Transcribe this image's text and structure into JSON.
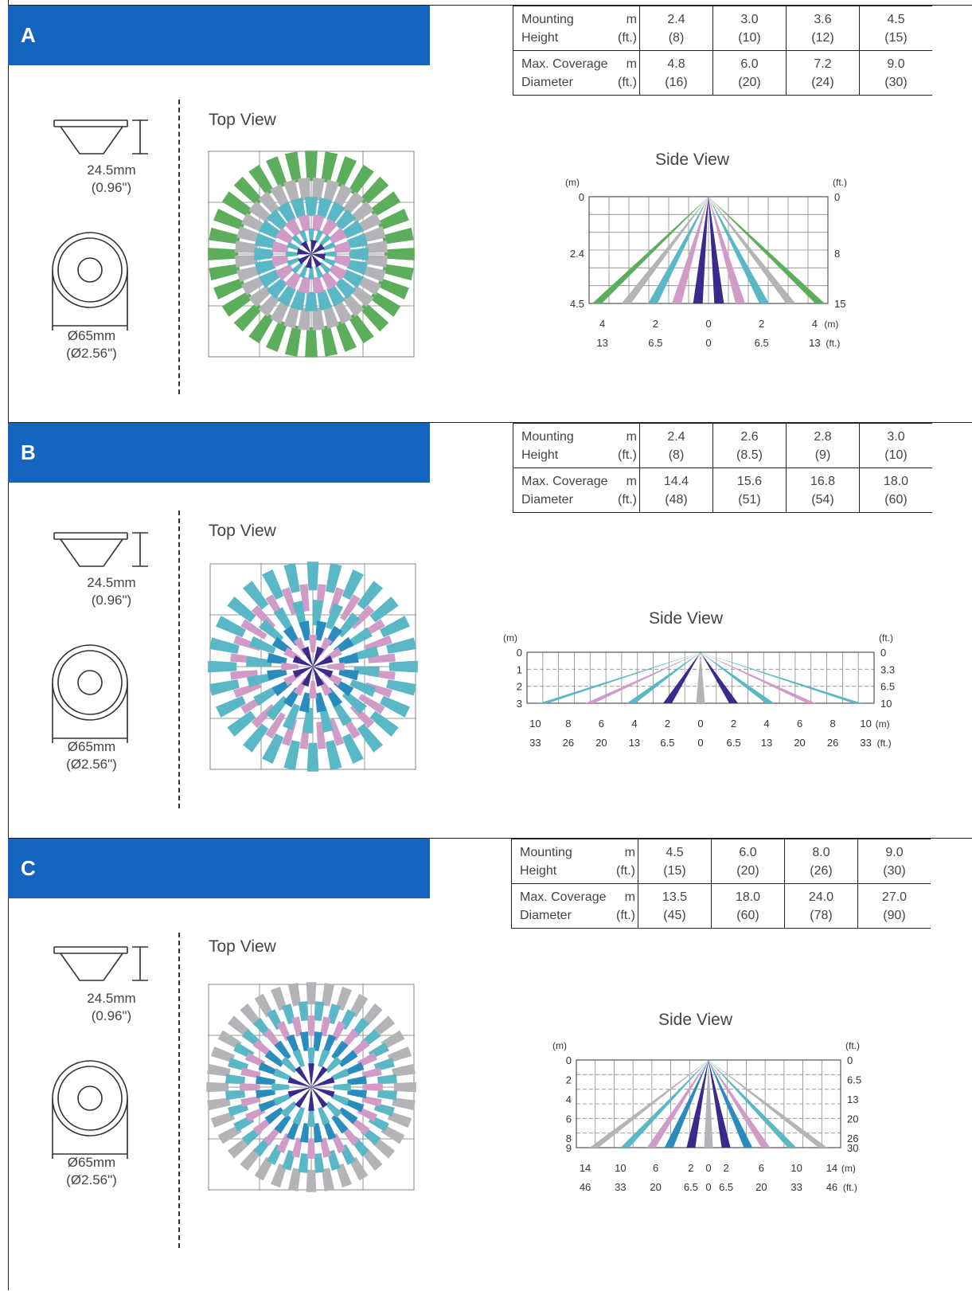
{
  "sections": [
    {
      "letter": "A",
      "table": {
        "row1": {
          "label1": "Mounting",
          "label2": "Height",
          "unit1": "m",
          "unit2": "(ft.)",
          "values": [
            [
              "2.4",
              "(8)"
            ],
            [
              "3.0",
              "(10)"
            ],
            [
              "3.6",
              "(12)"
            ],
            [
              "4.5",
              "(15)"
            ]
          ]
        },
        "row2": {
          "label1": "Max. Coverage",
          "label2": "Diameter",
          "unit1": "m",
          "unit2": "(ft.)",
          "values": [
            [
              "4.8",
              "(16)"
            ],
            [
              "6.0",
              "(20)"
            ],
            [
              "7.2",
              "(24)"
            ],
            [
              "9.0",
              "(30)"
            ]
          ]
        }
      },
      "top_view": "Top View",
      "side_view": "Side View",
      "height_dim": [
        "24.5mm",
        "(0.96\")"
      ],
      "diam_dim": [
        "Ø65mm",
        "(Ø2.56\")"
      ],
      "side": {
        "unit_left": "(m)",
        "unit_right": "(ft.)",
        "y_left": [
          "0",
          "2.4",
          "4.5"
        ],
        "y_right": [
          "0",
          "8",
          "15"
        ],
        "x_m": [
          "4",
          "2",
          "0",
          "2",
          "4"
        ],
        "x_m_unit": "(m)",
        "x_ft": [
          "13",
          "6.5",
          "0",
          "6.5",
          "13"
        ],
        "x_ft_unit": "(ft.)"
      }
    },
    {
      "letter": "B",
      "table": {
        "row1": {
          "label1": "Mounting",
          "label2": "Height",
          "unit1": "m",
          "unit2": "(ft.)",
          "values": [
            [
              "2.4",
              "(8)"
            ],
            [
              "2.6",
              "(8.5)"
            ],
            [
              "2.8",
              "(9)"
            ],
            [
              "3.0",
              "(10)"
            ]
          ]
        },
        "row2": {
          "label1": "Max. Coverage",
          "label2": "Diameter",
          "unit1": "m",
          "unit2": "(ft.)",
          "values": [
            [
              "14.4",
              "(48)"
            ],
            [
              "15.6",
              "(51)"
            ],
            [
              "16.8",
              "(54)"
            ],
            [
              "18.0",
              "(60)"
            ]
          ]
        }
      },
      "top_view": "Top View",
      "side_view": "Side View",
      "height_dim": [
        "24.5mm",
        "(0.96\")"
      ],
      "diam_dim": [
        "Ø65mm",
        "(Ø2.56\")"
      ],
      "side": {
        "unit_left": "(m)",
        "unit_right": "(ft.)",
        "y_left": [
          "0",
          "1",
          "2",
          "3"
        ],
        "y_right": [
          "0",
          "3.3",
          "6.5",
          "10"
        ],
        "x_m": [
          "10",
          "8",
          "6",
          "4",
          "2",
          "0",
          "2",
          "4",
          "6",
          "8",
          "10"
        ],
        "x_m_unit": "(m)",
        "x_ft": [
          "33",
          "26",
          "20",
          "13",
          "6.5",
          "0",
          "6.5",
          "13",
          "20",
          "26",
          "33"
        ],
        "x_ft_unit": "(ft.)"
      }
    },
    {
      "letter": "C",
      "table": {
        "row1": {
          "label1": "Mounting",
          "label2": "Height",
          "unit1": "m",
          "unit2": "(ft.)",
          "values": [
            [
              "4.5",
              "(15)"
            ],
            [
              "6.0",
              "(20)"
            ],
            [
              "8.0",
              "(26)"
            ],
            [
              "9.0",
              "(30)"
            ]
          ]
        },
        "row2": {
          "label1": "Max. Coverage",
          "label2": "Diameter",
          "unit1": "m",
          "unit2": "(ft.)",
          "values": [
            [
              "13.5",
              "(45)"
            ],
            [
              "18.0",
              "(60)"
            ],
            [
              "24.0",
              "(78)"
            ],
            [
              "27.0",
              "(90)"
            ]
          ]
        }
      },
      "top_view": "Top View",
      "side_view": "Side View",
      "height_dim": [
        "24.5mm",
        "(0.96\")"
      ],
      "diam_dim": [
        "Ø65mm",
        "(Ø2.56\")"
      ],
      "side": {
        "unit_left": "(m)",
        "unit_right": "(ft.)",
        "y_left": [
          "0",
          "2",
          "4",
          "6",
          "8",
          "9"
        ],
        "y_right": [
          "0",
          "6.5",
          "13",
          "20",
          "26",
          "30"
        ],
        "x_m": [
          "14",
          "10",
          "6",
          "2",
          "0",
          "2",
          "6",
          "10",
          "14"
        ],
        "x_m_unit": "(m)",
        "x_ft": [
          "46",
          "33",
          "20",
          "6.5",
          "0",
          "6.5",
          "20",
          "33",
          "46"
        ],
        "x_ft_unit": "(ft.)"
      }
    }
  ],
  "colors": {
    "banner": "#1565c0",
    "green": "#5cad5c",
    "gray": "#b4b4b8",
    "cyan": "#5ab7c6",
    "pink": "#d19bc7",
    "blue": "#2a8bbd",
    "navy": "#3b2a8c"
  }
}
